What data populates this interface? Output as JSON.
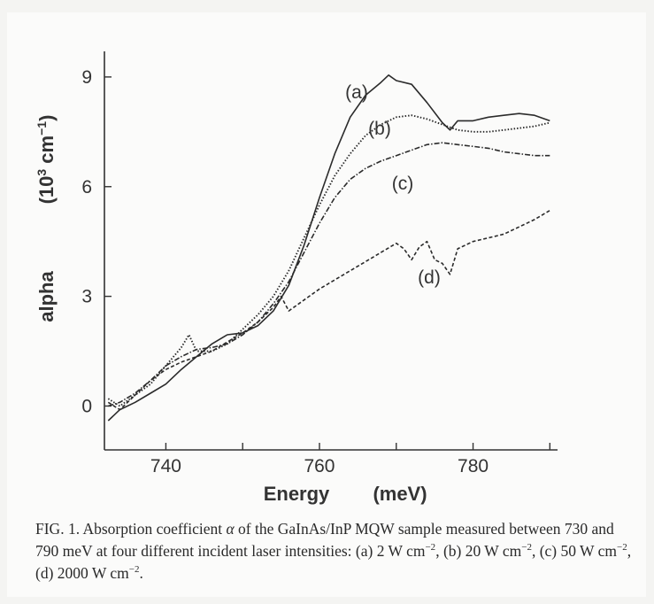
{
  "chart_data": {
    "type": "line",
    "xlabel": "Energy",
    "xunit": "(meV)",
    "ylabel": "alpha",
    "yunit_base": "(10",
    "yunit_exp": "3",
    "yunit_mid": " cm",
    "yunit_exp2": "−1",
    "yunit_close": ")",
    "xlim": [
      732,
      791
    ],
    "ylim": [
      -1.2,
      9.7
    ],
    "xticks": [
      740,
      750,
      760,
      770,
      780,
      790
    ],
    "xtick_labels": [
      "740",
      "",
      "760",
      "",
      "780",
      ""
    ],
    "yticks": [
      0,
      3,
      6,
      9
    ],
    "ytick_labels": [
      "0",
      "3",
      "6",
      "9"
    ],
    "grid": false,
    "series": [
      {
        "name": "(a)",
        "style": "solid",
        "x": [
          732.5,
          734,
          736,
          738,
          740,
          742,
          744,
          746,
          748,
          750,
          752,
          754,
          756,
          758,
          760,
          762,
          764,
          766,
          768,
          769,
          770,
          772,
          774,
          776,
          777,
          778,
          780,
          782,
          784,
          786,
          788,
          790
        ],
        "y": [
          -0.4,
          -0.1,
          0.1,
          0.35,
          0.6,
          1.0,
          1.35,
          1.7,
          1.95,
          2.0,
          2.2,
          2.6,
          3.3,
          4.4,
          5.7,
          6.9,
          7.9,
          8.5,
          8.85,
          9.05,
          8.9,
          8.8,
          8.3,
          7.75,
          7.55,
          7.8,
          7.8,
          7.9,
          7.95,
          8.0,
          7.95,
          7.8
        ]
      },
      {
        "name": "(b)",
        "style": "dotted",
        "x": [
          732.5,
          734,
          736,
          738,
          740,
          742,
          743,
          744,
          746,
          748,
          750,
          752,
          754,
          756,
          758,
          760,
          762,
          764,
          766,
          768,
          770,
          772,
          774,
          776,
          778,
          780,
          782,
          784,
          786,
          788,
          790
        ],
        "y": [
          0.2,
          0.0,
          0.3,
          0.6,
          1.1,
          1.6,
          1.95,
          1.5,
          1.5,
          1.7,
          2.1,
          2.5,
          3.0,
          3.7,
          4.6,
          5.5,
          6.3,
          6.9,
          7.4,
          7.7,
          7.9,
          7.95,
          7.85,
          7.7,
          7.55,
          7.5,
          7.5,
          7.55,
          7.6,
          7.65,
          7.75
        ]
      },
      {
        "name": "(c)",
        "style": "dashdot",
        "x": [
          732.5,
          734,
          736,
          738,
          740,
          742,
          744,
          746,
          748,
          750,
          752,
          754,
          756,
          758,
          760,
          762,
          764,
          766,
          768,
          770,
          772,
          774,
          776,
          778,
          780,
          782,
          784,
          786,
          788,
          790
        ],
        "y": [
          0.0,
          0.1,
          0.35,
          0.7,
          1.1,
          1.35,
          1.55,
          1.6,
          1.7,
          1.95,
          2.3,
          2.8,
          3.4,
          4.2,
          5.0,
          5.7,
          6.2,
          6.5,
          6.7,
          6.85,
          7.0,
          7.15,
          7.2,
          7.15,
          7.1,
          7.05,
          6.95,
          6.9,
          6.85,
          6.85
        ]
      },
      {
        "name": "(d)",
        "style": "dashed",
        "x": [
          732.5,
          734,
          736,
          738,
          740,
          742,
          744,
          746,
          748,
          750,
          752,
          754,
          755,
          756,
          758,
          760,
          762,
          764,
          766,
          768,
          770,
          771,
          772,
          773,
          774,
          775,
          776,
          777,
          778,
          780,
          782,
          784,
          786,
          788,
          790
        ],
        "y": [
          0.1,
          -0.1,
          0.3,
          0.7,
          1.0,
          1.2,
          1.35,
          1.5,
          1.75,
          2.0,
          2.3,
          2.7,
          3.0,
          2.6,
          2.9,
          3.2,
          3.45,
          3.7,
          3.95,
          4.2,
          4.45,
          4.3,
          4.0,
          4.35,
          4.5,
          4.0,
          3.9,
          3.6,
          4.3,
          4.5,
          4.6,
          4.7,
          4.9,
          5.1,
          5.35
        ]
      }
    ]
  },
  "caption": {
    "p1": "FIG. 1. Absorption coefficient ",
    "alpha": "α",
    "p2": " of the GaInAs/InP MQW sample measured between 730 and 790 meV at four different incident laser intensities: (a) 2 W cm",
    "e1": "−2",
    "p3": ", (b) 20 W cm",
    "e2": "−2",
    "p4": ", (c) 50 W cm",
    "e3": "−2",
    "p5": ", (d) 2000 W cm",
    "e4": "−2",
    "p6": "."
  }
}
